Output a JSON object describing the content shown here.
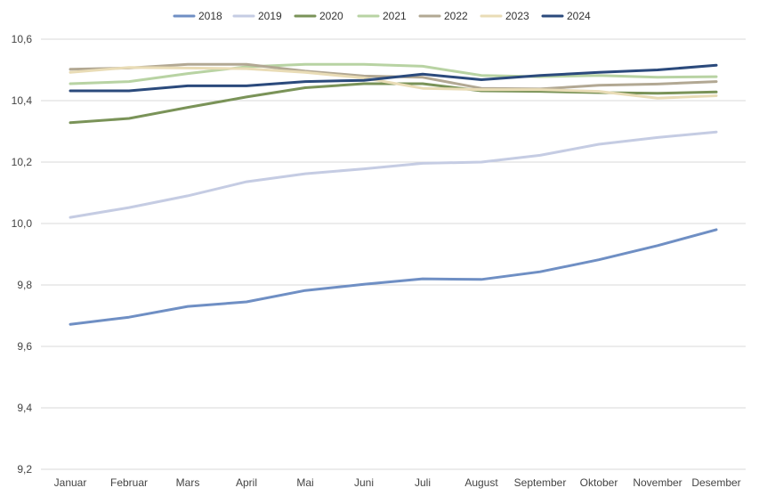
{
  "chart_data": {
    "type": "line",
    "title": "",
    "xlabel": "",
    "ylabel": "",
    "ylim": [
      9.2,
      10.6
    ],
    "ytick_step": 0.2,
    "ytick_labels": [
      "9,2",
      "9,4",
      "9,6",
      "9,8",
      "10,0",
      "10,2",
      "10,4",
      "10,6"
    ],
    "grid": "horizontal",
    "legend_position": "top-center",
    "categories": [
      "Januar",
      "Februar",
      "Mars",
      "April",
      "Mai",
      "Juni",
      "Juli",
      "August",
      "September",
      "Oktober",
      "November",
      "Desember"
    ],
    "series": [
      {
        "name": "2018",
        "color": "#6f8fc4",
        "values": [
          9.672,
          9.695,
          9.73,
          9.745,
          9.782,
          9.802,
          9.82,
          9.818,
          9.843,
          9.882,
          9.928,
          9.98
        ]
      },
      {
        "name": "2019",
        "color": "#c5cce3",
        "values": [
          10.02,
          10.052,
          10.09,
          10.136,
          10.162,
          10.178,
          10.196,
          10.2,
          10.222,
          10.258,
          10.28,
          10.298
        ]
      },
      {
        "name": "2020",
        "color": "#7a9358",
        "values": [
          10.328,
          10.342,
          10.378,
          10.412,
          10.442,
          10.455,
          10.455,
          10.432,
          10.43,
          10.426,
          10.424,
          10.428
        ]
      },
      {
        "name": "2021",
        "color": "#b8d3a3",
        "values": [
          10.455,
          10.462,
          10.488,
          10.51,
          10.518,
          10.518,
          10.512,
          10.482,
          10.478,
          10.482,
          10.476,
          10.478
        ]
      },
      {
        "name": "2022",
        "color": "#b2a893",
        "values": [
          10.502,
          10.506,
          10.518,
          10.518,
          10.496,
          10.48,
          10.476,
          10.44,
          10.438,
          10.45,
          10.454,
          10.462
        ]
      },
      {
        "name": "2023",
        "color": "#e9dcb6",
        "values": [
          10.492,
          10.508,
          10.506,
          10.504,
          10.492,
          10.474,
          10.44,
          10.436,
          10.436,
          10.43,
          10.408,
          10.416
        ]
      },
      {
        "name": "2024",
        "color": "#2b4a7c",
        "values": [
          10.432,
          10.432,
          10.448,
          10.448,
          10.462,
          10.466,
          10.486,
          10.468,
          10.482,
          10.492,
          10.5,
          10.515
        ]
      }
    ]
  }
}
